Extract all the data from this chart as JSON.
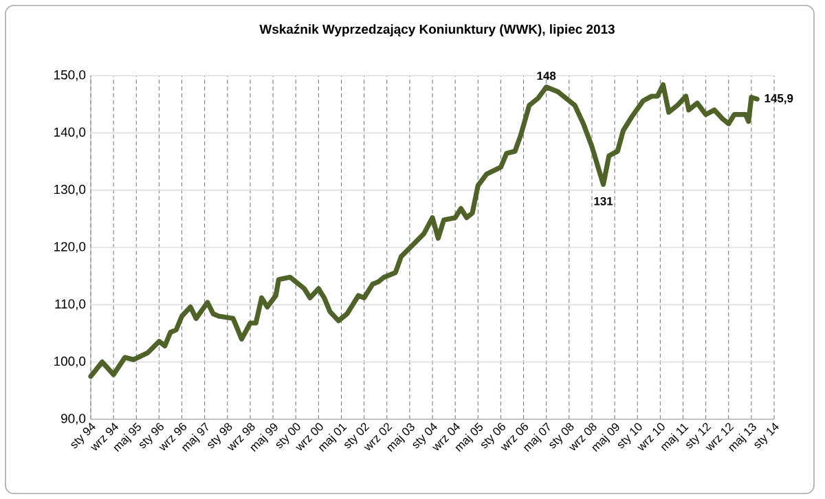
{
  "chart_data": {
    "type": "line",
    "title": "Wskaźnik Wyprzedzający Koniunktury (WWK), lipiec 2013",
    "x": [
      "1994-01",
      "1994-05",
      "1994-09",
      "1995-01",
      "1995-04",
      "1995-09",
      "1996-01",
      "1996-03",
      "1996-05",
      "1996-07",
      "1996-09",
      "1996-12",
      "1997-02",
      "1997-06",
      "1997-08",
      "1997-10",
      "1998-03",
      "1998-06",
      "1998-09",
      "1998-11",
      "1999-01",
      "1999-03",
      "1999-06",
      "1999-07",
      "1999-11",
      "2000-02",
      "2000-04",
      "2000-06",
      "2000-09",
      "2000-11",
      "2001-01",
      "2001-04",
      "2001-07",
      "2001-11",
      "2002-01",
      "2002-04",
      "2002-06",
      "2002-08",
      "2002-12",
      "2003-02",
      "2003-06",
      "2003-10",
      "2004-01",
      "2004-03",
      "2004-05",
      "2004-09",
      "2004-11",
      "2005-01",
      "2005-03",
      "2005-05",
      "2005-08",
      "2006-01",
      "2006-03",
      "2006-06",
      "2006-08",
      "2006-11",
      "2007-02",
      "2007-05",
      "2007-09",
      "2007-12",
      "2008-03",
      "2008-06",
      "2008-09",
      "2009-01",
      "2009-03",
      "2009-06",
      "2009-08",
      "2009-11",
      "2010-03",
      "2010-06",
      "2010-08",
      "2010-10",
      "2010-12",
      "2011-03",
      "2011-06",
      "2011-07",
      "2011-10",
      "2012-01",
      "2012-04",
      "2012-07",
      "2012-09",
      "2012-11",
      "2013-03",
      "2013-04",
      "2013-05",
      "2013-07"
    ],
    "series": [
      {
        "color": "#4f6228",
        "values": [
          97.5,
          100.0,
          97.8,
          100.8,
          100.4,
          101.6,
          103.6,
          102.8,
          105.2,
          105.6,
          108.0,
          109.6,
          107.6,
          110.4,
          108.4,
          108.0,
          107.6,
          104.0,
          106.8,
          106.8,
          111.2,
          109.6,
          111.6,
          114.4,
          114.8,
          113.6,
          112.8,
          111.2,
          112.8,
          111.2,
          108.8,
          107.2,
          108.4,
          111.6,
          111.2,
          113.6,
          114.0,
          114.8,
          115.6,
          118.4,
          120.4,
          122.4,
          125.2,
          121.6,
          124.8,
          125.2,
          126.8,
          125.2,
          126.0,
          130.8,
          132.8,
          134.0,
          136.4,
          136.8,
          139.6,
          144.8,
          146.0,
          148.0,
          147.2,
          146.0,
          144.8,
          141.6,
          137.6,
          131.0,
          136.0,
          136.8,
          140.4,
          142.8,
          145.6,
          146.4,
          146.4,
          148.4,
          143.6,
          144.8,
          146.4,
          144.0,
          145.2,
          143.2,
          144.0,
          142.4,
          141.6,
          143.2,
          143.2,
          142.0,
          146.2,
          145.9
        ]
      }
    ],
    "xlim": [
      "1994-01",
      "2014-01"
    ],
    "xticks": [
      {
        "value": "1994-01",
        "label": "sty 94"
      },
      {
        "value": "1994-09",
        "label": "wrz 94"
      },
      {
        "value": "1995-05",
        "label": "maj 95"
      },
      {
        "value": "1996-01",
        "label": "sty 96"
      },
      {
        "value": "1996-09",
        "label": "wrz 96"
      },
      {
        "value": "1997-05",
        "label": "maj 97"
      },
      {
        "value": "1998-01",
        "label": "sty 98"
      },
      {
        "value": "1998-09",
        "label": "wrz 98"
      },
      {
        "value": "1999-05",
        "label": "maj 99"
      },
      {
        "value": "2000-01",
        "label": "sty 00"
      },
      {
        "value": "2000-09",
        "label": "wrz 00"
      },
      {
        "value": "2001-05",
        "label": "maj 01"
      },
      {
        "value": "2002-01",
        "label": "sty 02"
      },
      {
        "value": "2002-09",
        "label": "wrz 02"
      },
      {
        "value": "2003-05",
        "label": "maj 03"
      },
      {
        "value": "2004-01",
        "label": "sty 04"
      },
      {
        "value": "2004-09",
        "label": "wrz 04"
      },
      {
        "value": "2005-05",
        "label": "maj 05"
      },
      {
        "value": "2006-01",
        "label": "sty 06"
      },
      {
        "value": "2006-09",
        "label": "wrz 06"
      },
      {
        "value": "2007-05",
        "label": "maj 07"
      },
      {
        "value": "2008-01",
        "label": "sty 08"
      },
      {
        "value": "2008-09",
        "label": "wrz 08"
      },
      {
        "value": "2009-05",
        "label": "maj 09"
      },
      {
        "value": "2010-01",
        "label": "sty 10"
      },
      {
        "value": "2010-09",
        "label": "wrz 10"
      },
      {
        "value": "2011-05",
        "label": "maj 11"
      },
      {
        "value": "2012-01",
        "label": "sty 12"
      },
      {
        "value": "2012-09",
        "label": "wrz 12"
      },
      {
        "value": "2013-05",
        "label": "maj 13"
      },
      {
        "value": "2014-01",
        "label": "sty 14"
      }
    ],
    "ylim": [
      90,
      150
    ],
    "yticks": [
      {
        "value": 90,
        "label": "90,0"
      },
      {
        "value": 100,
        "label": "100,0"
      },
      {
        "value": 110,
        "label": "110,0"
      },
      {
        "value": 120,
        "label": "120,0"
      },
      {
        "value": 130,
        "label": "130,0"
      },
      {
        "value": 140,
        "label": "140,0"
      },
      {
        "value": 150,
        "label": "150,0"
      }
    ],
    "grid": true,
    "annotations": [
      {
        "text": "148",
        "x": "2007-05",
        "y": 148
      },
      {
        "text": "131",
        "x": "2009-01",
        "y": 131
      },
      {
        "text": "145,9",
        "x": "2013-07",
        "y": 145.9
      }
    ]
  }
}
